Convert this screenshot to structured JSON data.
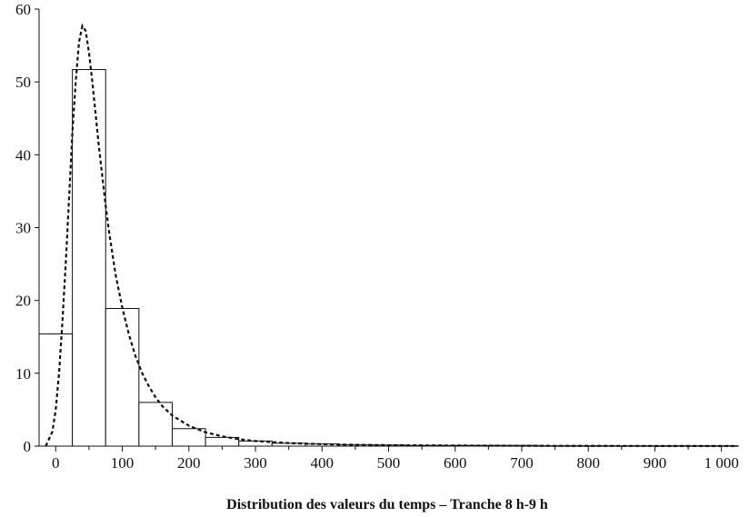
{
  "chart_data": {
    "type": "bar",
    "xlabel": "Distribution des valeurs du temps – Tranche 8 h-9 h",
    "ylabel": "",
    "title": "",
    "xlim": [
      -25,
      1025
    ],
    "ylim": [
      0,
      60
    ],
    "x_ticks": [
      0,
      100,
      200,
      300,
      400,
      500,
      600,
      700,
      800,
      900,
      1000
    ],
    "x_tick_labels": [
      "0",
      "100",
      "200",
      "300",
      "400",
      "500",
      "600",
      "700",
      "800",
      "900",
      "1 000"
    ],
    "y_ticks": [
      0,
      10,
      20,
      30,
      40,
      50,
      60
    ],
    "y_tick_labels": [
      "0",
      "10",
      "20",
      "30",
      "40",
      "50",
      "60"
    ],
    "minor_x_step": 50,
    "bars": [
      {
        "x0": -25,
        "x1": 25,
        "value": 15.4
      },
      {
        "x0": 25,
        "x1": 75,
        "value": 51.7
      },
      {
        "x0": 75,
        "x1": 125,
        "value": 18.9
      },
      {
        "x0": 125,
        "x1": 175,
        "value": 6.0
      },
      {
        "x0": 175,
        "x1": 225,
        "value": 2.4
      },
      {
        "x0": 225,
        "x1": 275,
        "value": 1.2
      },
      {
        "x0": 275,
        "x1": 325,
        "value": 0.7
      },
      {
        "x0": 325,
        "x1": 375,
        "value": 0.4
      },
      {
        "x0": 375,
        "x1": 425,
        "value": 0.3
      },
      {
        "x0": 425,
        "x1": 475,
        "value": 0.2
      },
      {
        "x0": 475,
        "x1": 525,
        "value": 0.15
      },
      {
        "x0": 525,
        "x1": 575,
        "value": 0.1
      },
      {
        "x0": 575,
        "x1": 625,
        "value": 0.1
      },
      {
        "x0": 625,
        "x1": 675,
        "value": 0.1
      },
      {
        "x0": 675,
        "x1": 725,
        "value": 0.1
      },
      {
        "x0": 725,
        "x1": 775,
        "value": 0.05
      },
      {
        "x0": 775,
        "x1": 825,
        "value": 0.05
      },
      {
        "x0": 825,
        "x1": 875,
        "value": 0.05
      },
      {
        "x0": 875,
        "x1": 925,
        "value": 0.05
      },
      {
        "x0": 925,
        "x1": 975,
        "value": 0.05
      },
      {
        "x0": 975,
        "x1": 1025,
        "value": 0.05
      }
    ],
    "fitted_curve": {
      "style": "dotted",
      "points": [
        [
          -15,
          0.0
        ],
        [
          -5,
          2.0
        ],
        [
          0,
          5.0
        ],
        [
          5,
          10.0
        ],
        [
          10,
          17.0
        ],
        [
          15,
          25.0
        ],
        [
          20,
          34.0
        ],
        [
          25,
          43.0
        ],
        [
          30,
          50.0
        ],
        [
          35,
          55.5
        ],
        [
          40,
          57.7
        ],
        [
          45,
          57.0
        ],
        [
          50,
          54.0
        ],
        [
          55,
          50.0
        ],
        [
          60,
          45.5
        ],
        [
          65,
          41.0
        ],
        [
          70,
          37.0
        ],
        [
          75,
          33.0
        ],
        [
          80,
          29.5
        ],
        [
          90,
          23.5
        ],
        [
          100,
          19.0
        ],
        [
          110,
          15.3
        ],
        [
          120,
          12.3
        ],
        [
          130,
          10.0
        ],
        [
          140,
          8.2
        ],
        [
          150,
          6.7
        ],
        [
          160,
          5.5
        ],
        [
          175,
          4.2
        ],
        [
          200,
          2.8
        ],
        [
          225,
          1.9
        ],
        [
          250,
          1.35
        ],
        [
          275,
          0.95
        ],
        [
          300,
          0.7
        ],
        [
          350,
          0.42
        ],
        [
          400,
          0.27
        ],
        [
          450,
          0.18
        ],
        [
          500,
          0.13
        ],
        [
          600,
          0.08
        ],
        [
          700,
          0.05
        ],
        [
          800,
          0.03
        ],
        [
          900,
          0.02
        ],
        [
          1000,
          0.015
        ],
        [
          1020,
          0.01
        ]
      ]
    }
  }
}
